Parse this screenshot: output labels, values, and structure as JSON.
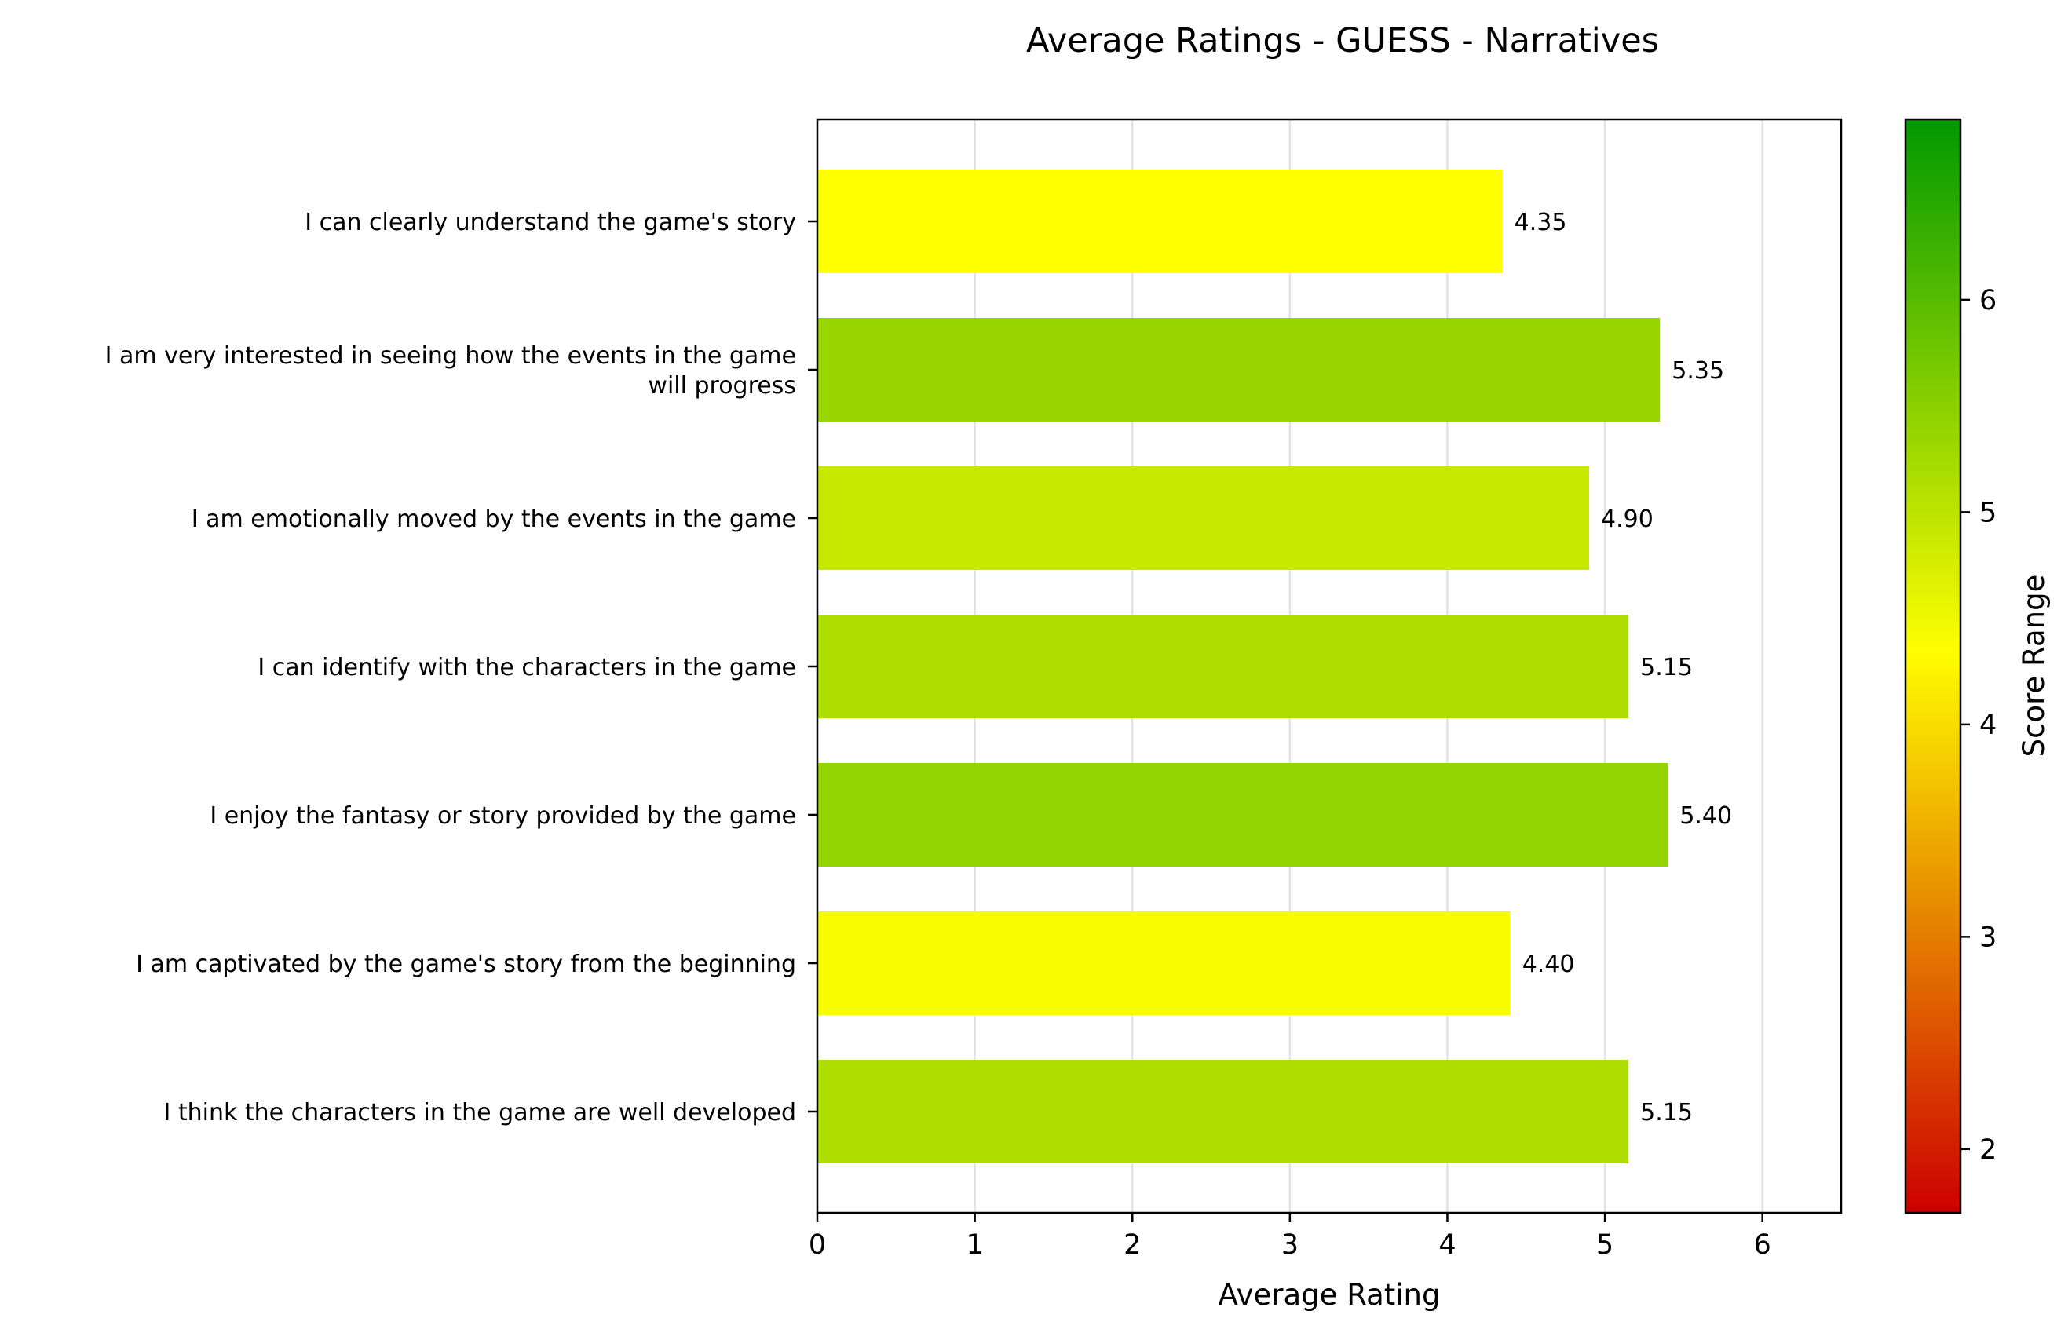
{
  "chart_data": {
    "type": "bar",
    "orientation": "horizontal",
    "title": "Average Ratings - GUESS - Narratives",
    "xlabel": "Average Rating",
    "ylabel": "",
    "xlim": [
      0,
      6.5
    ],
    "xticks": [
      0,
      1,
      2,
      3,
      4,
      5,
      6
    ],
    "grid": "vertical",
    "categories": [
      [
        "I can clearly understand the game's story"
      ],
      [
        "I am very interested in seeing how the events in the game",
        "will progress"
      ],
      [
        "I am emotionally moved by the events in the game"
      ],
      [
        "I can identify with the characters in the game"
      ],
      [
        "I enjoy the fantasy or story provided by the game"
      ],
      [
        "I am captivated by the game's story from the beginning"
      ],
      [
        "I think the characters in the game are well developed"
      ]
    ],
    "values": [
      4.35,
      5.35,
      4.9,
      5.15,
      5.4,
      4.4,
      5.15
    ],
    "value_labels": [
      "4.35",
      "5.35",
      "4.90",
      "5.15",
      "5.40",
      "4.40",
      "5.15"
    ],
    "colorbar": {
      "label": "Score Range",
      "range": [
        1.7,
        6.85
      ],
      "ticks": [
        2,
        3,
        4,
        5,
        6
      ],
      "colors": [
        "#cc0000",
        "#ffff00",
        "#009900"
      ],
      "color_stops": [
        1.7,
        4.35,
        6.85
      ]
    }
  }
}
